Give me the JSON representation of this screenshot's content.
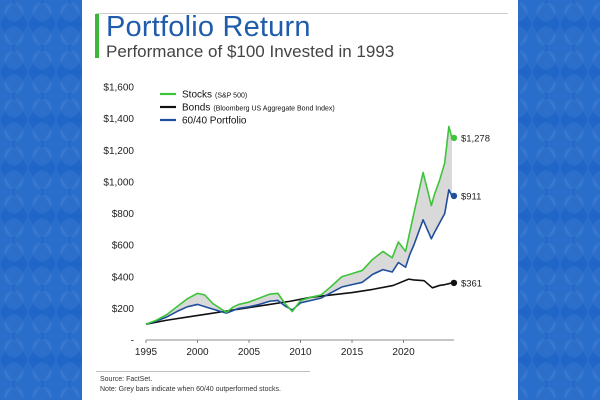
{
  "header": {
    "title": "Portfolio Return",
    "subtitle": "Performance of $100 Invested in 1993"
  },
  "footer": {
    "source": "Source: FactSet.",
    "note": "Note: Grey bars indicate when 60/40 outperformed stocks."
  },
  "colors": {
    "stocks": "#3ec43a",
    "bonds": "#111111",
    "portfolio": "#1f4e9c",
    "gap_fill": "#d9d9d9",
    "accent": "#3db43a",
    "title": "#1f5cab"
  },
  "chart_data": {
    "type": "line",
    "title": "Portfolio Return",
    "xlim": [
      1995,
      2024.9
    ],
    "ylim": [
      0,
      1600
    ],
    "grid": false,
    "legend_position": "top-left",
    "y_ticks": [
      0,
      200,
      400,
      600,
      800,
      1000,
      1200,
      1400,
      1600
    ],
    "y_tick_labels": [
      "-",
      "$200",
      "$400",
      "$600",
      "$800",
      "$1,000",
      "$1,200",
      "$1,400",
      "$1,600"
    ],
    "x_ticks": [
      1995,
      2000,
      2005,
      2010,
      2015,
      2020
    ],
    "x_tick_labels": [
      "1995",
      "2000",
      "2005",
      "2010",
      "2015",
      "2020"
    ],
    "shaded": "gap between Stocks and 60/40 Portfolio shaded grey",
    "series": [
      {
        "name": "Stocks",
        "legend_suffix": "(S&P 500)",
        "color": "#3ec43a",
        "end_label": "$1,278",
        "x": [
          1995,
          1996,
          1997,
          1998,
          1999,
          2000,
          2000.7,
          2001.5,
          2002.8,
          2003.5,
          2004,
          2005,
          2006,
          2007,
          2007.8,
          2008.5,
          2009.2,
          2010,
          2011,
          2012,
          2013,
          2014,
          2015,
          2016,
          2017,
          2018,
          2018.9,
          2019.5,
          2020.2,
          2020.6,
          2021,
          2021.9,
          2022.7,
          2023,
          2023.5,
          2024,
          2024.4,
          2024.7
        ],
        "y": [
          100,
          125,
          160,
          210,
          260,
          295,
          285,
          230,
          175,
          210,
          225,
          240,
          265,
          290,
          295,
          230,
          180,
          250,
          270,
          285,
          340,
          400,
          420,
          440,
          510,
          560,
          520,
          620,
          560,
          680,
          800,
          1060,
          850,
          920,
          1010,
          1120,
          1350,
          1278
        ]
      },
      {
        "name": "Bonds",
        "legend_suffix": "(Bloomberg US Aggregate Bond Index)",
        "color": "#111111",
        "end_label": "$361",
        "x": [
          1995,
          1997,
          1999,
          2001,
          2003,
          2005,
          2007,
          2009,
          2011,
          2013,
          2015,
          2017,
          2019,
          2020.5,
          2021,
          2022,
          2022.8,
          2023.5,
          2024,
          2024.7
        ],
        "y": [
          100,
          125,
          145,
          165,
          185,
          205,
          225,
          245,
          270,
          285,
          300,
          320,
          345,
          385,
          380,
          375,
          330,
          345,
          350,
          361
        ]
      },
      {
        "name": "60/40 Portfolio",
        "legend_suffix": "",
        "color": "#1f4e9c",
        "end_label": "$911",
        "x": [
          1995,
          1996,
          1997,
          1998,
          1999,
          2000,
          2001,
          2002.8,
          2004,
          2005,
          2006,
          2007,
          2007.8,
          2008.5,
          2009.2,
          2010,
          2011,
          2012,
          2013,
          2014,
          2015,
          2016,
          2017,
          2018,
          2018.9,
          2019.5,
          2020.2,
          2020.6,
          2021,
          2021.9,
          2022.7,
          2023,
          2023.5,
          2024,
          2024.4,
          2024.7
        ],
        "y": [
          100,
          120,
          145,
          180,
          210,
          225,
          205,
          170,
          200,
          210,
          225,
          245,
          250,
          215,
          190,
          235,
          250,
          265,
          300,
          335,
          350,
          365,
          415,
          445,
          430,
          490,
          460,
          540,
          600,
          760,
          640,
          680,
          740,
          800,
          950,
          911
        ]
      }
    ]
  }
}
